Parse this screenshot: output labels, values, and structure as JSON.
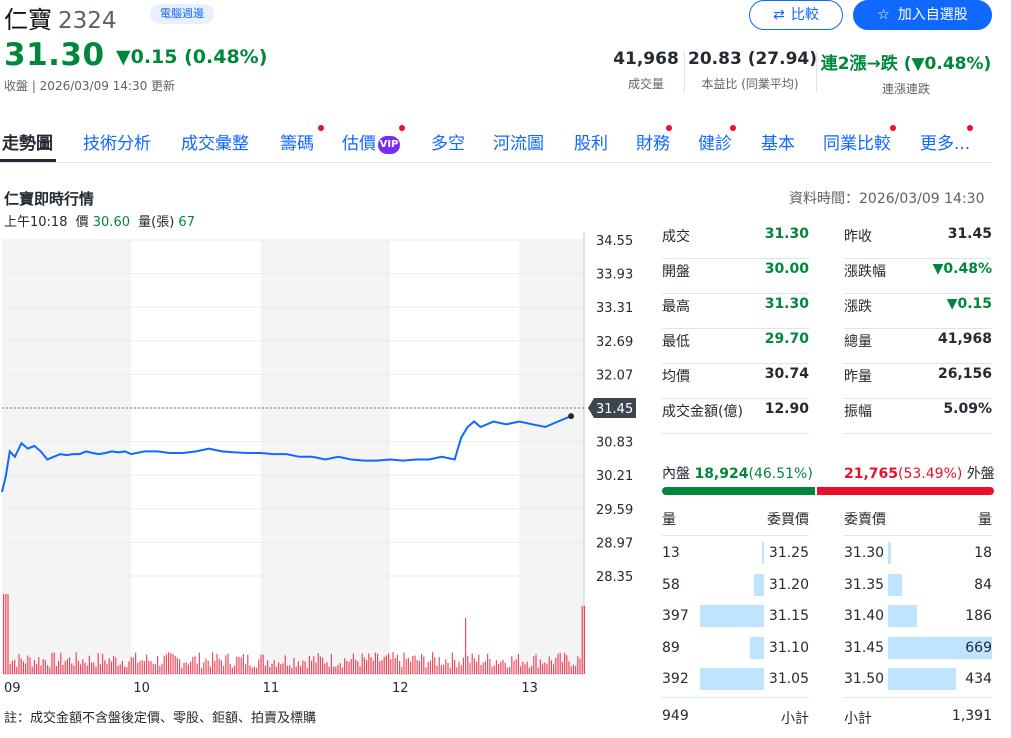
{
  "header": {
    "name": "仁寶",
    "code": "2324",
    "badge": "電腦週邊",
    "price": "31.30",
    "change": "▼0.15 (0.48%)",
    "status": "收盤 | 2026/03/09 14:30 更新",
    "compare_label": "比較",
    "watchlist_label": "加入自選股",
    "stats": [
      {
        "value": "41,968",
        "label": "成交量"
      },
      {
        "value": "20.83 (27.94)",
        "label": "本益比 (同業平均)"
      },
      {
        "value": "連2漲→跌 (▼0.48%)",
        "label": "連漲連跌"
      }
    ]
  },
  "tabs": [
    {
      "label": "走勢圖"
    },
    {
      "label": "技術分析"
    },
    {
      "label": "成交彙整"
    },
    {
      "label": "籌碼"
    },
    {
      "label": "估價"
    },
    {
      "label": "多空"
    },
    {
      "label": "河流圖"
    },
    {
      "label": "股利"
    },
    {
      "label": "財務"
    },
    {
      "label": "健診"
    },
    {
      "label": "基本"
    },
    {
      "label": "同業比較"
    },
    {
      "label": "更多..."
    }
  ],
  "vip_label": "VIP",
  "section": {
    "title": "仁寶即時行情",
    "data_time": "資料時間：2026/03/09 14:30",
    "tooltip_time": "上午10:18",
    "tooltip_price_label": "價",
    "tooltip_price": "30.60",
    "tooltip_vol_label": "量(張)",
    "tooltip_vol": "67"
  },
  "chart_data": {
    "type": "line",
    "y_ticks": [
      "34.55",
      "33.93",
      "33.31",
      "32.69",
      "32.07",
      "31.45",
      "30.83",
      "30.21",
      "29.59",
      "28.97",
      "28.35"
    ],
    "x_ticks": [
      "09",
      "10",
      "11",
      "12",
      "13"
    ],
    "prev_close": 31.45,
    "prev_close_label": "31.45",
    "ylim": [
      28.35,
      34.55
    ],
    "series": [
      {
        "x": [
          9.0,
          9.03,
          9.06,
          9.1,
          9.15,
          9.2,
          9.25,
          9.3,
          9.35,
          9.4,
          9.45,
          9.5,
          9.55,
          9.6,
          9.65,
          9.7,
          9.75,
          9.8,
          9.85,
          9.9,
          9.95,
          10.0,
          10.1,
          10.2,
          10.3,
          10.4,
          10.5,
          10.6,
          10.7,
          10.8,
          10.9,
          11.0,
          11.1,
          11.2,
          11.3,
          11.4,
          11.5,
          11.6,
          11.7,
          11.8,
          11.9,
          12.0,
          12.1,
          12.2,
          12.3,
          12.4,
          12.5,
          12.55,
          12.6,
          12.65,
          12.7,
          12.75,
          12.8,
          12.9,
          13.0,
          13.1,
          13.2,
          13.3,
          13.4
        ],
        "y": [
          29.9,
          30.2,
          30.65,
          30.55,
          30.8,
          30.7,
          30.75,
          30.65,
          30.5,
          30.55,
          30.6,
          30.58,
          30.6,
          30.6,
          30.65,
          30.62,
          30.6,
          30.62,
          30.65,
          30.63,
          30.65,
          30.6,
          30.65,
          30.65,
          30.62,
          30.62,
          30.65,
          30.7,
          30.65,
          30.63,
          30.62,
          30.62,
          30.6,
          30.6,
          30.55,
          30.55,
          30.5,
          30.55,
          30.5,
          30.48,
          30.48,
          30.5,
          30.48,
          30.5,
          30.5,
          30.55,
          30.5,
          30.9,
          31.1,
          31.2,
          31.1,
          31.15,
          31.2,
          31.15,
          31.2,
          31.15,
          31.1,
          31.2,
          31.3
        ]
      }
    ]
  },
  "quote": {
    "left": [
      {
        "label": "成交",
        "value": "31.30"
      },
      {
        "label": "開盤",
        "value": "30.00"
      },
      {
        "label": "最高",
        "value": "31.30"
      },
      {
        "label": "最低",
        "value": "29.70"
      },
      {
        "label": "均價",
        "value": "30.74"
      },
      {
        "label": "成交金額(億)",
        "value": "12.90"
      }
    ],
    "right": [
      {
        "label": "昨收",
        "value": "31.45"
      },
      {
        "label": "漲跌幅",
        "value": "▼0.48%"
      },
      {
        "label": "漲跌",
        "value": "▼0.15"
      },
      {
        "label": "總量",
        "value": "41,968"
      },
      {
        "label": "昨量",
        "value": "26,156"
      },
      {
        "label": "振幅",
        "value": "5.09%"
      }
    ]
  },
  "inner_outer": {
    "inner_label": "內盤",
    "inner_value": "18,924",
    "inner_pct": "(46.51%)",
    "outer_value": "21,765",
    "outer_pct": "(53.49%)",
    "outer_label": "外盤",
    "inner_ratio": 0.4651
  },
  "orderbook": {
    "head_bid_qty": "量",
    "head_bid_price": "委買價",
    "head_ask_price": "委賣價",
    "head_ask_qty": "量",
    "bids": [
      {
        "qty": "13",
        "price": "31.25",
        "ratio": 0.02
      },
      {
        "qty": "58",
        "price": "31.20",
        "ratio": 0.09
      },
      {
        "qty": "397",
        "price": "31.15",
        "ratio": 0.59
      },
      {
        "qty": "89",
        "price": "31.10",
        "ratio": 0.13
      },
      {
        "qty": "392",
        "price": "31.05",
        "ratio": 0.59
      }
    ],
    "asks": [
      {
        "price": "31.30",
        "qty": "18",
        "ratio": 0.03
      },
      {
        "price": "31.35",
        "qty": "84",
        "ratio": 0.13
      },
      {
        "price": "31.40",
        "qty": "186",
        "ratio": 0.28
      },
      {
        "price": "31.45",
        "qty": "669",
        "ratio": 1.0
      },
      {
        "price": "31.50",
        "qty": "434",
        "ratio": 0.65
      }
    ],
    "bid_total_label": "小計",
    "bid_total": "949",
    "ask_total_label": "小計",
    "ask_total": "1,391"
  },
  "footnote": "註：成交金額不含盤後定價、零股、鉅額、拍賣及標購"
}
